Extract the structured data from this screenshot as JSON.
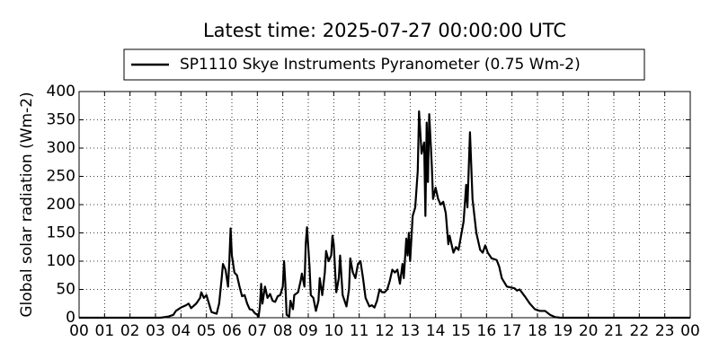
{
  "chart_data": {
    "type": "line",
    "title": "Latest time: 2025-07-27 00:00:00 UTC",
    "y_label": "Global solar radiation (Wm-2)",
    "x": [
      0,
      3.2,
      3.5,
      3.7,
      3.8,
      4.0,
      4.2,
      4.3,
      4.4,
      4.6,
      4.75,
      4.8,
      4.9,
      5.0,
      5.1,
      5.2,
      5.4,
      5.5,
      5.6,
      5.65,
      5.75,
      5.85,
      5.9,
      5.95,
      6.0,
      6.1,
      6.2,
      6.3,
      6.4,
      6.5,
      6.6,
      6.7,
      6.8,
      6.9,
      7.0,
      7.05,
      7.1,
      7.15,
      7.2,
      7.3,
      7.4,
      7.5,
      7.6,
      7.7,
      7.8,
      7.9,
      8.0,
      8.05,
      8.1,
      8.15,
      8.25,
      8.3,
      8.4,
      8.45,
      8.6,
      8.7,
      8.75,
      8.85,
      8.9,
      8.95,
      9.05,
      9.1,
      9.2,
      9.3,
      9.4,
      9.45,
      9.55,
      9.65,
      9.7,
      9.8,
      9.9,
      9.95,
      10.0,
      10.1,
      10.2,
      10.25,
      10.35,
      10.5,
      10.6,
      10.65,
      10.75,
      10.85,
      10.95,
      11.05,
      11.15,
      11.25,
      11.4,
      11.5,
      11.6,
      11.7,
      11.8,
      11.9,
      12.0,
      12.1,
      12.2,
      12.3,
      12.4,
      12.5,
      12.6,
      12.7,
      12.75,
      12.85,
      12.9,
      12.95,
      13.0,
      13.1,
      13.2,
      13.3,
      13.35,
      13.45,
      13.55,
      13.6,
      13.65,
      13.7,
      13.75,
      13.85,
      13.9,
      14.0,
      14.1,
      14.2,
      14.3,
      14.4,
      14.5,
      14.55,
      14.7,
      14.8,
      14.9,
      15.0,
      15.1,
      15.2,
      15.25,
      15.35,
      15.45,
      15.6,
      15.75,
      15.85,
      15.95,
      16.05,
      16.2,
      16.4,
      16.5,
      16.6,
      16.8,
      17.0,
      17.1,
      17.2,
      17.3,
      17.5,
      17.7,
      17.9,
      18.1,
      18.3,
      18.5,
      18.7,
      18.9,
      24
    ],
    "series": [
      {
        "name": "SP1110 Skye Instruments Pyranometer (0.75 Wm-2)",
        "color": "#000000",
        "values": [
          0,
          0,
          2,
          5,
          12,
          18,
          22,
          25,
          17,
          25,
          35,
          45,
          35,
          40,
          25,
          10,
          7,
          25,
          70,
          95,
          85,
          55,
          100,
          158,
          110,
          80,
          75,
          55,
          38,
          40,
          25,
          15,
          14,
          8,
          5,
          2,
          20,
          60,
          25,
          55,
          35,
          42,
          30,
          28,
          38,
          40,
          55,
          100,
          60,
          5,
          2,
          30,
          15,
          40,
          45,
          65,
          78,
          55,
          130,
          160,
          90,
          40,
          35,
          12,
          30,
          70,
          40,
          80,
          118,
          100,
          110,
          145,
          130,
          45,
          70,
          110,
          40,
          20,
          50,
          105,
          80,
          70,
          95,
          100,
          70,
          35,
          20,
          22,
          18,
          30,
          50,
          45,
          45,
          50,
          65,
          85,
          80,
          85,
          60,
          95,
          70,
          140,
          110,
          150,
          100,
          180,
          195,
          260,
          365,
          290,
          310,
          180,
          345,
          240,
          360,
          270,
          210,
          230,
          210,
          200,
          205,
          185,
          130,
          145,
          115,
          125,
          120,
          145,
          170,
          235,
          195,
          328,
          210,
          150,
          120,
          115,
          128,
          115,
          105,
          102,
          90,
          70,
          55,
          53,
          52,
          48,
          50,
          38,
          25,
          15,
          12,
          12,
          5,
          1,
          0,
          0
        ]
      }
    ],
    "xlim": [
      0,
      24
    ],
    "xticks": [
      {
        "value": 0,
        "label": "00"
      },
      {
        "value": 1,
        "label": "01"
      },
      {
        "value": 2,
        "label": "02"
      },
      {
        "value": 3,
        "label": "03"
      },
      {
        "value": 4,
        "label": "04"
      },
      {
        "value": 5,
        "label": "05"
      },
      {
        "value": 6,
        "label": "06"
      },
      {
        "value": 7,
        "label": "07"
      },
      {
        "value": 8,
        "label": "08"
      },
      {
        "value": 9,
        "label": "09"
      },
      10,
      11,
      12,
      13,
      14,
      15,
      16,
      17,
      18,
      19,
      20,
      21,
      22,
      23,
      {
        "value": 24,
        "label": "00"
      }
    ],
    "ylim": [
      0,
      400
    ],
    "yticks": [
      0,
      50,
      100,
      150,
      200,
      250,
      300,
      350,
      400
    ],
    "grid": true,
    "legend": "top"
  }
}
